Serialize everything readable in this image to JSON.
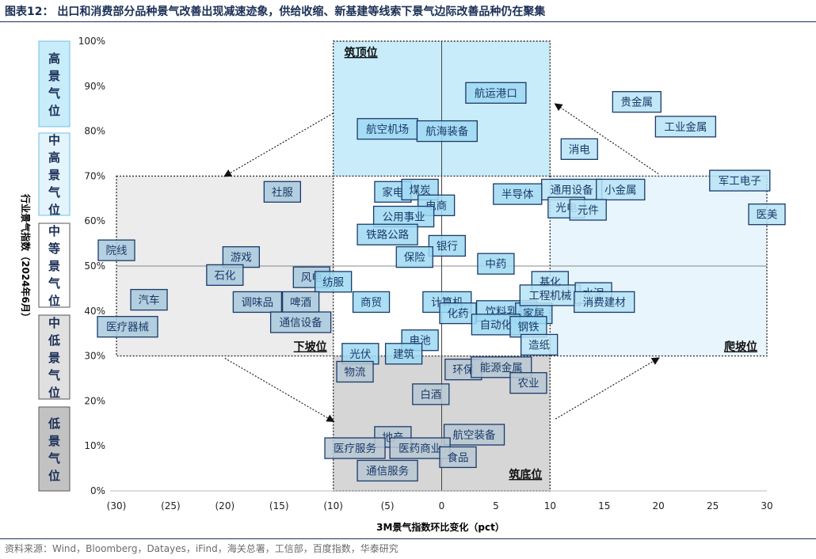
{
  "title": "图表12：  出口和消费部分品种景气改善出现减速迹象，供给收缩、新基建等线索下景气边际改善品种仍在聚集",
  "source": "资料来源：Wind，Bloomberg，Datayes，iFind，海关总署，工信部，百度指数，华泰研究",
  "colors": {
    "title": "#1a2e55",
    "top_zone": "#c9ecfa",
    "right_zone": "#e8f5fc",
    "left_zone": "#ececec",
    "bottom_zone": "#d6d6d6",
    "label_border": "#1a3a6b",
    "label_text": "#1a3a6b"
  },
  "legend_levels": [
    {
      "label": "高景气位",
      "fill": "#c9ecfa",
      "border": "#6fc1e3"
    },
    {
      "label": "中高景气位",
      "fill": "#e3f4fc",
      "border": "#6fc1e3"
    },
    {
      "label": "中等景气位",
      "fill": "#ffffff",
      "border": "#555555"
    },
    {
      "label": "中低景气位",
      "fill": "#e0e0e0",
      "border": "#555555"
    },
    {
      "label": "低景气位",
      "fill": "#c2c2c2",
      "border": "#555555"
    }
  ],
  "chart_data": {
    "type": "scatter",
    "xlabel": "3M景气指数环比变化（pct）",
    "ylabel": "行业景气指数（2024年6月）",
    "xlim": [
      -30,
      30
    ],
    "ylim": [
      0,
      100
    ],
    "x_ticks": [
      "(30)",
      "(25)",
      "(20)",
      "(15)",
      "(10)",
      "(5)",
      "0",
      "5",
      "10",
      "15",
      "20",
      "25",
      "30"
    ],
    "x_tick_values": [
      -30,
      -25,
      -20,
      -15,
      -10,
      -5,
      0,
      5,
      10,
      15,
      20,
      25,
      30
    ],
    "y_ticks": [
      "0%",
      "10%",
      "20%",
      "30%",
      "40%",
      "50%",
      "60%",
      "70%",
      "80%",
      "90%",
      "100%"
    ],
    "y_tick_values": [
      0,
      10,
      20,
      30,
      40,
      50,
      60,
      70,
      80,
      90,
      100
    ],
    "reference_lines": {
      "x": 0,
      "y": 50
    },
    "zones": [
      {
        "name": "筑顶位",
        "x": [
          -10,
          10
        ],
        "y": [
          70,
          100
        ],
        "fill": "#c9ecfa"
      },
      {
        "name": "爬坡位",
        "x": [
          10,
          30
        ],
        "y": [
          30,
          70
        ],
        "fill": "#e8f5fc"
      },
      {
        "name": "下坡位",
        "x": [
          -30,
          -10
        ],
        "y": [
          30,
          70
        ],
        "fill": "#ececec"
      },
      {
        "name": "筑底位",
        "x": [
          -10,
          10
        ],
        "y": [
          0,
          30
        ],
        "fill": "#d6d6d6"
      }
    ],
    "points": [
      {
        "name": "航运港口",
        "x": 5,
        "y": 88.5,
        "zone": "top"
      },
      {
        "name": "航空机场",
        "x": -5,
        "y": 80.5,
        "zone": "top"
      },
      {
        "name": "航海装备",
        "x": 0.5,
        "y": 80,
        "zone": "top"
      },
      {
        "name": "贵金属",
        "x": 18,
        "y": 86.5,
        "zone": "right"
      },
      {
        "name": "工业金属",
        "x": 22.5,
        "y": 81,
        "zone": "right"
      },
      {
        "name": "消电",
        "x": 12.7,
        "y": 76,
        "zone": "right"
      },
      {
        "name": "军工电子",
        "x": 27.5,
        "y": 69,
        "zone": "right"
      },
      {
        "name": "医美",
        "x": 30,
        "y": 61.5,
        "zone": "right"
      },
      {
        "name": "通用设备",
        "x": 12,
        "y": 67,
        "zone": "right"
      },
      {
        "name": "小金属",
        "x": 16.5,
        "y": 67,
        "zone": "right"
      },
      {
        "name": "光电",
        "x": 11.5,
        "y": 63,
        "zone": "right"
      },
      {
        "name": "元件",
        "x": 13.5,
        "y": 62.5,
        "zone": "right"
      },
      {
        "name": "社服",
        "x": -14.7,
        "y": 66.5,
        "zone": "left"
      },
      {
        "name": "家电",
        "x": -4.5,
        "y": 66.5,
        "zone": "white"
      },
      {
        "name": "煤炭",
        "x": -2,
        "y": 67,
        "zone": "white"
      },
      {
        "name": "半导体",
        "x": 7,
        "y": 66,
        "zone": "white"
      },
      {
        "name": "电商",
        "x": -0.5,
        "y": 63.5,
        "zone": "white"
      },
      {
        "name": "公用事业",
        "x": -3.5,
        "y": 61,
        "zone": "white"
      },
      {
        "name": "铁路公路",
        "x": -5,
        "y": 57,
        "zone": "white"
      },
      {
        "name": "银行",
        "x": 0.5,
        "y": 54.5,
        "zone": "white"
      },
      {
        "name": "保险",
        "x": -2.5,
        "y": 52,
        "zone": "white"
      },
      {
        "name": "中药",
        "x": 5,
        "y": 50.5,
        "zone": "white"
      },
      {
        "name": "院线",
        "x": -30,
        "y": 53.5,
        "zone": "left"
      },
      {
        "name": "游戏",
        "x": -18.5,
        "y": 52,
        "zone": "left"
      },
      {
        "name": "石化",
        "x": -20,
        "y": 48,
        "zone": "left"
      },
      {
        "name": "风电",
        "x": -12,
        "y": 47.5,
        "zone": "left"
      },
      {
        "name": "纺服",
        "x": -10,
        "y": 46.5,
        "zone": "white"
      },
      {
        "name": "汽车",
        "x": -27,
        "y": 42.5,
        "zone": "left"
      },
      {
        "name": "调味品",
        "x": -17,
        "y": 42,
        "zone": "left"
      },
      {
        "name": "啤酒",
        "x": -13,
        "y": 42,
        "zone": "left"
      },
      {
        "name": "商贸",
        "x": -6.5,
        "y": 42,
        "zone": "white"
      },
      {
        "name": "通信设备",
        "x": -13,
        "y": 37.5,
        "zone": "left"
      },
      {
        "name": "医疗器械",
        "x": -30,
        "y": 36.5,
        "zone": "left"
      },
      {
        "name": "计算机",
        "x": 0.5,
        "y": 42,
        "zone": "white"
      },
      {
        "name": "化药",
        "x": 1.5,
        "y": 39.5,
        "zone": "white"
      },
      {
        "name": "饮料乳品",
        "x": 6,
        "y": 40,
        "zone": "white"
      },
      {
        "name": "家居",
        "x": 8.5,
        "y": 39.5,
        "zone": "white"
      },
      {
        "name": "自动化",
        "x": 5,
        "y": 37,
        "zone": "white"
      },
      {
        "name": "钢铁",
        "x": 8,
        "y": 36.5,
        "zone": "white"
      },
      {
        "name": "基化",
        "x": 10,
        "y": 46.5,
        "zone": "right"
      },
      {
        "name": "工程机械",
        "x": 10,
        "y": 43.5,
        "zone": "right"
      },
      {
        "name": "水泥",
        "x": 14,
        "y": 44,
        "zone": "right"
      },
      {
        "name": "消费建材",
        "x": 15,
        "y": 42,
        "zone": "right"
      },
      {
        "name": "造纸",
        "x": 9,
        "y": 32.5,
        "zone": "right"
      },
      {
        "name": "电池",
        "x": -2,
        "y": 33.5,
        "zone": "white"
      },
      {
        "name": "光伏",
        "x": -7.5,
        "y": 30.5,
        "zone": "white"
      },
      {
        "name": "建筑",
        "x": -3.5,
        "y": 30.5,
        "zone": "white"
      },
      {
        "name": "物流",
        "x": -8,
        "y": 26.5,
        "zone": "bottom"
      },
      {
        "name": "环保",
        "x": 2,
        "y": 27,
        "zone": "bottom"
      },
      {
        "name": "能源金属",
        "x": 5.5,
        "y": 27.5,
        "zone": "bottom"
      },
      {
        "name": "农业",
        "x": 8,
        "y": 24,
        "zone": "bottom"
      },
      {
        "name": "白酒",
        "x": -1,
        "y": 21.5,
        "zone": "bottom"
      },
      {
        "name": "地产",
        "x": -4.5,
        "y": 12,
        "zone": "bottom"
      },
      {
        "name": "航空装备",
        "x": 3,
        "y": 12.5,
        "zone": "bottom"
      },
      {
        "name": "医疗服务",
        "x": -8,
        "y": 9.5,
        "zone": "bottom"
      },
      {
        "name": "医药商业",
        "x": -2,
        "y": 9.5,
        "zone": "bottom"
      },
      {
        "name": "食品",
        "x": 1.5,
        "y": 7.5,
        "zone": "bottom"
      },
      {
        "name": "通信服务",
        "x": -5,
        "y": 4.5,
        "zone": "bottom"
      }
    ],
    "arrows": [
      {
        "from": [
          -10,
          84
        ],
        "to": [
          -20,
          70
        ]
      },
      {
        "from": [
          20,
          70.5
        ],
        "to": [
          10.5,
          86
        ]
      },
      {
        "from": [
          -20,
          29.5
        ],
        "to": [
          -10,
          15.5
        ]
      },
      {
        "from": [
          10.5,
          16
        ],
        "to": [
          20,
          29.5
        ]
      }
    ]
  }
}
